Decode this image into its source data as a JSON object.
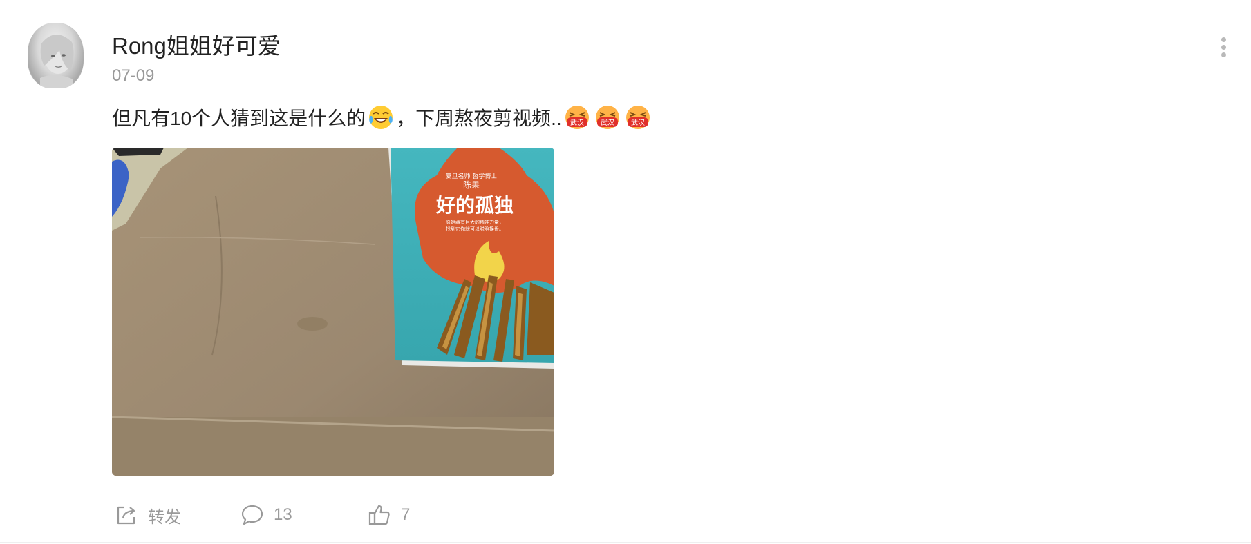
{
  "post": {
    "username": "Rong姐姐好可爱",
    "date": "07-09",
    "text_part1": "但凡有10个人猜到这是什么的",
    "text_part2": "，下周熬夜剪视频..",
    "emojis": [
      "laughing-tears-emoji",
      "wuhan-mask-emoji",
      "wuhan-mask-emoji",
      "wuhan-mask-emoji"
    ],
    "emoji_badge_text": "武汉"
  },
  "image": {
    "book_title": "好的孤独",
    "book_author": "陈果",
    "book_subtitle_line1": "复旦名师 哲学博士",
    "book_tagline_line1": "原始藏有巨大的精神力量，",
    "book_tagline_line2": "找到它你就可以脱胎换骨。"
  },
  "actions": {
    "repost_label": "转发",
    "comment_count": "13",
    "like_count": "7"
  },
  "colors": {
    "book_cover": "#3fb0b8",
    "flame": "#d65a2f",
    "cardboard": "#9d8b72"
  }
}
